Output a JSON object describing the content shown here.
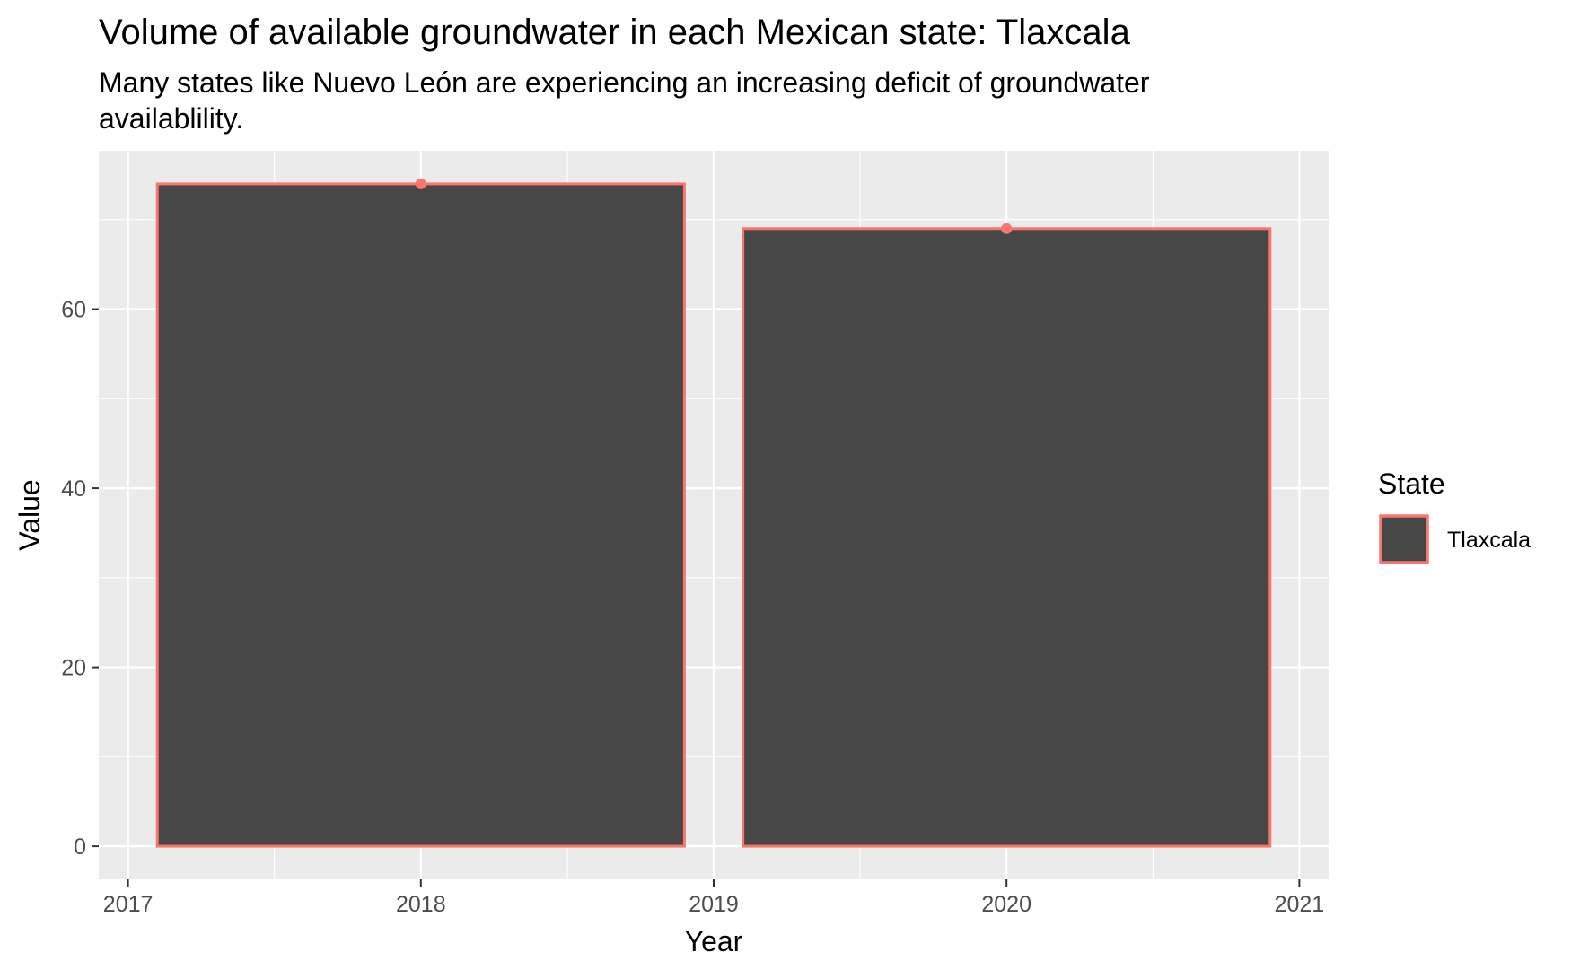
{
  "chart_data": {
    "type": "bar",
    "title": "Volume of available groundwater in each Mexican state: Tlaxcala",
    "subtitle": "Many states like Nuevo León are experiencing an increasing deficit of groundwater availablility.",
    "xlabel": "Year",
    "ylabel": "Value",
    "x": [
      2018,
      2020
    ],
    "values": [
      74,
      69
    ],
    "bar_width_years": 1.8,
    "xlim": [
      2016.9,
      2021.1
    ],
    "ylim": [
      -3.7,
      77.7
    ],
    "x_ticks": [
      "2017",
      "2018",
      "2019",
      "2020",
      "2021"
    ],
    "y_ticks": [
      "0",
      "20",
      "40",
      "60"
    ],
    "grid": true,
    "legend": {
      "title": "State",
      "position": "right",
      "entries": [
        {
          "label": "Tlaxcala"
        }
      ]
    },
    "series": [
      {
        "name": "Tlaxcala",
        "values": [
          74,
          69
        ]
      }
    ],
    "colors": {
      "bar_fill": "#474747",
      "bar_outline": "#F8766D",
      "point": "#F8766D",
      "panel_bg": "#EBEBEB",
      "grid": "#FFFFFF"
    }
  }
}
